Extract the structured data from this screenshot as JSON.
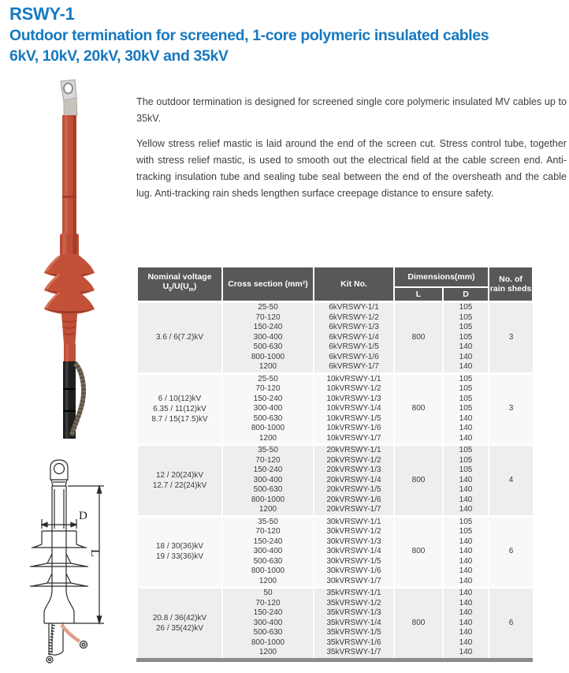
{
  "page": {
    "title_line1": "RSWY-1",
    "title_line2": "Outdoor termination for screened, 1-core polymeric insulated cables",
    "title_line3": "6kV, 10kV, 20kV, 30kV and 35kV"
  },
  "description": {
    "para1": "The outdoor termination is designed for screened single core polymeric insulated MV cables up to 35kV.",
    "para2": "Yellow stress relief mastic is laid around the end of the screen cut. Stress control tube, together with stress relief mastic, is used to smooth out the electrical field at the cable screen end. Anti-tracking insulation tube and sealing tube seal between the end of the oversheath and the cable lug. Anti-tracking rain sheds lengthen surface creepage distance to ensure safety.",
    "text_color": "#3d3d3d"
  },
  "figures": {
    "drawing": {
      "dim_d": "D",
      "dim_l": "L"
    }
  },
  "colors": {
    "title_blue": "#1779c0",
    "table_header_bg": "#595757",
    "group_bg_a": "#eeeeee",
    "group_bg_b": "#f8f8f8",
    "table_bottom_bar": "#8c8b8b",
    "product_red": "#c0503a"
  },
  "table": {
    "header": {
      "nominal_line1": "Nominal voltage",
      "nominal_u1": "U",
      "nominal_sub1": "0",
      "nominal_mid": "/U(U",
      "nominal_sub2": "m",
      "nominal_end": ")",
      "cross_section": "Cross section  (mm²)",
      "kit_no": "Kit No.",
      "dimensions": "Dimensions(mm)",
      "dim_l": "L",
      "dim_d": "D",
      "rain_line1": "No. of",
      "rain_line2": "rain sheds"
    },
    "groups": [
      {
        "voltage_lines": [
          "3.6 / 6(7.2)kV"
        ],
        "L": "800",
        "rain_sheds": "3",
        "rows": [
          {
            "cross": "25-50",
            "kit": "6kVRSWY-1/1",
            "D": "105"
          },
          {
            "cross": "70-120",
            "kit": "6kVRSWY-1/2",
            "D": "105"
          },
          {
            "cross": "150-240",
            "kit": "6kVRSWY-1/3",
            "D": "105"
          },
          {
            "cross": "300-400",
            "kit": "6kVRSWY-1/4",
            "D": "105"
          },
          {
            "cross": "500-630",
            "kit": "6kVRSWY-1/5",
            "D": "140"
          },
          {
            "cross": "800-1000",
            "kit": "6kVRSWY-1/6",
            "D": "140"
          },
          {
            "cross": "1200",
            "kit": "6kVRSWY-1/7",
            "D": "140"
          }
        ]
      },
      {
        "voltage_lines": [
          "6 / 10(12)kV",
          "6.35 / 11(12)kV",
          "8.7 / 15(17.5)kV"
        ],
        "L": "800",
        "rain_sheds": "3",
        "rows": [
          {
            "cross": "25-50",
            "kit": "10kVRSWY-1/1",
            "D": "105"
          },
          {
            "cross": "70-120",
            "kit": "10kVRSWY-1/2",
            "D": "105"
          },
          {
            "cross": "150-240",
            "kit": "10kVRSWY-1/3",
            "D": "105"
          },
          {
            "cross": "300-400",
            "kit": "10kVRSWY-1/4",
            "D": "105"
          },
          {
            "cross": "500-630",
            "kit": "10kVRSWY-1/5",
            "D": "140"
          },
          {
            "cross": "800-1000",
            "kit": "10kVRSWY-1/6",
            "D": "140"
          },
          {
            "cross": "1200",
            "kit": "10kVRSWY-1/7",
            "D": "140"
          }
        ]
      },
      {
        "voltage_lines": [
          "12 / 20(24)kV",
          "12.7 / 22(24)kV"
        ],
        "L": "800",
        "rain_sheds": "4",
        "rows": [
          {
            "cross": "35-50",
            "kit": "20kVRSWY-1/1",
            "D": "105"
          },
          {
            "cross": "70-120",
            "kit": "20kVRSWY-1/2",
            "D": "105"
          },
          {
            "cross": "150-240",
            "kit": "20kVRSWY-1/3",
            "D": "105"
          },
          {
            "cross": "300-400",
            "kit": "20kVRSWY-1/4",
            "D": "140"
          },
          {
            "cross": "500-630",
            "kit": "20kVRSWY-1/5",
            "D": "140"
          },
          {
            "cross": "800-1000",
            "kit": "20kVRSWY-1/6",
            "D": "140"
          },
          {
            "cross": "1200",
            "kit": "20kVRSWY-1/7",
            "D": "140"
          }
        ]
      },
      {
        "voltage_lines": [
          "18 / 30(36)kV",
          "19 / 33(36)kV"
        ],
        "L": "800",
        "rain_sheds": "6",
        "rows": [
          {
            "cross": "35-50",
            "kit": "30kVRSWY-1/1",
            "D": "105"
          },
          {
            "cross": "70-120",
            "kit": "30kVRSWY-1/2",
            "D": "105"
          },
          {
            "cross": "150-240",
            "kit": "30kVRSWY-1/3",
            "D": "140"
          },
          {
            "cross": "300-400",
            "kit": "30kVRSWY-1/4",
            "D": "140"
          },
          {
            "cross": "500-630",
            "kit": "30kVRSWY-1/5",
            "D": "140"
          },
          {
            "cross": "800-1000",
            "kit": "30kVRSWY-1/6",
            "D": "140"
          },
          {
            "cross": "1200",
            "kit": "30kVRSWY-1/7",
            "D": "140"
          }
        ]
      },
      {
        "voltage_lines": [
          "20.8 / 36(42)kV",
          "26 / 35(42)kV"
        ],
        "L": "800",
        "rain_sheds": "6",
        "rows": [
          {
            "cross": "50",
            "kit": "35kVRSWY-1/1",
            "D": "140"
          },
          {
            "cross": "70-120",
            "kit": "35kVRSWY-1/2",
            "D": "140"
          },
          {
            "cross": "150-240",
            "kit": "35kVRSWY-1/3",
            "D": "140"
          },
          {
            "cross": "300-400",
            "kit": "35kVRSWY-1/4",
            "D": "140"
          },
          {
            "cross": "500-630",
            "kit": "35kVRSWY-1/5",
            "D": "140"
          },
          {
            "cross": "800-1000",
            "kit": "35kVRSWY-1/6",
            "D": "140"
          },
          {
            "cross": "1200",
            "kit": "35kVRSWY-1/7",
            "D": "140"
          }
        ]
      }
    ]
  }
}
